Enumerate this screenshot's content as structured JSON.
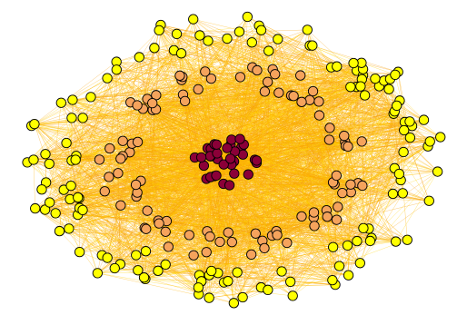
{
  "graph": {
    "kind": "network diagram",
    "background": "#ffffff",
    "edge_colors": [
      "#ffd400",
      "#ffb000",
      "#f59e0b"
    ],
    "groups": [
      {
        "id": "outer",
        "color": "#ffff00",
        "node_count": 140
      },
      {
        "id": "middle",
        "color": "#f5a35c",
        "node_count": 95
      },
      {
        "id": "core",
        "color": "#8b0038",
        "node_count": 34
      }
    ]
  }
}
